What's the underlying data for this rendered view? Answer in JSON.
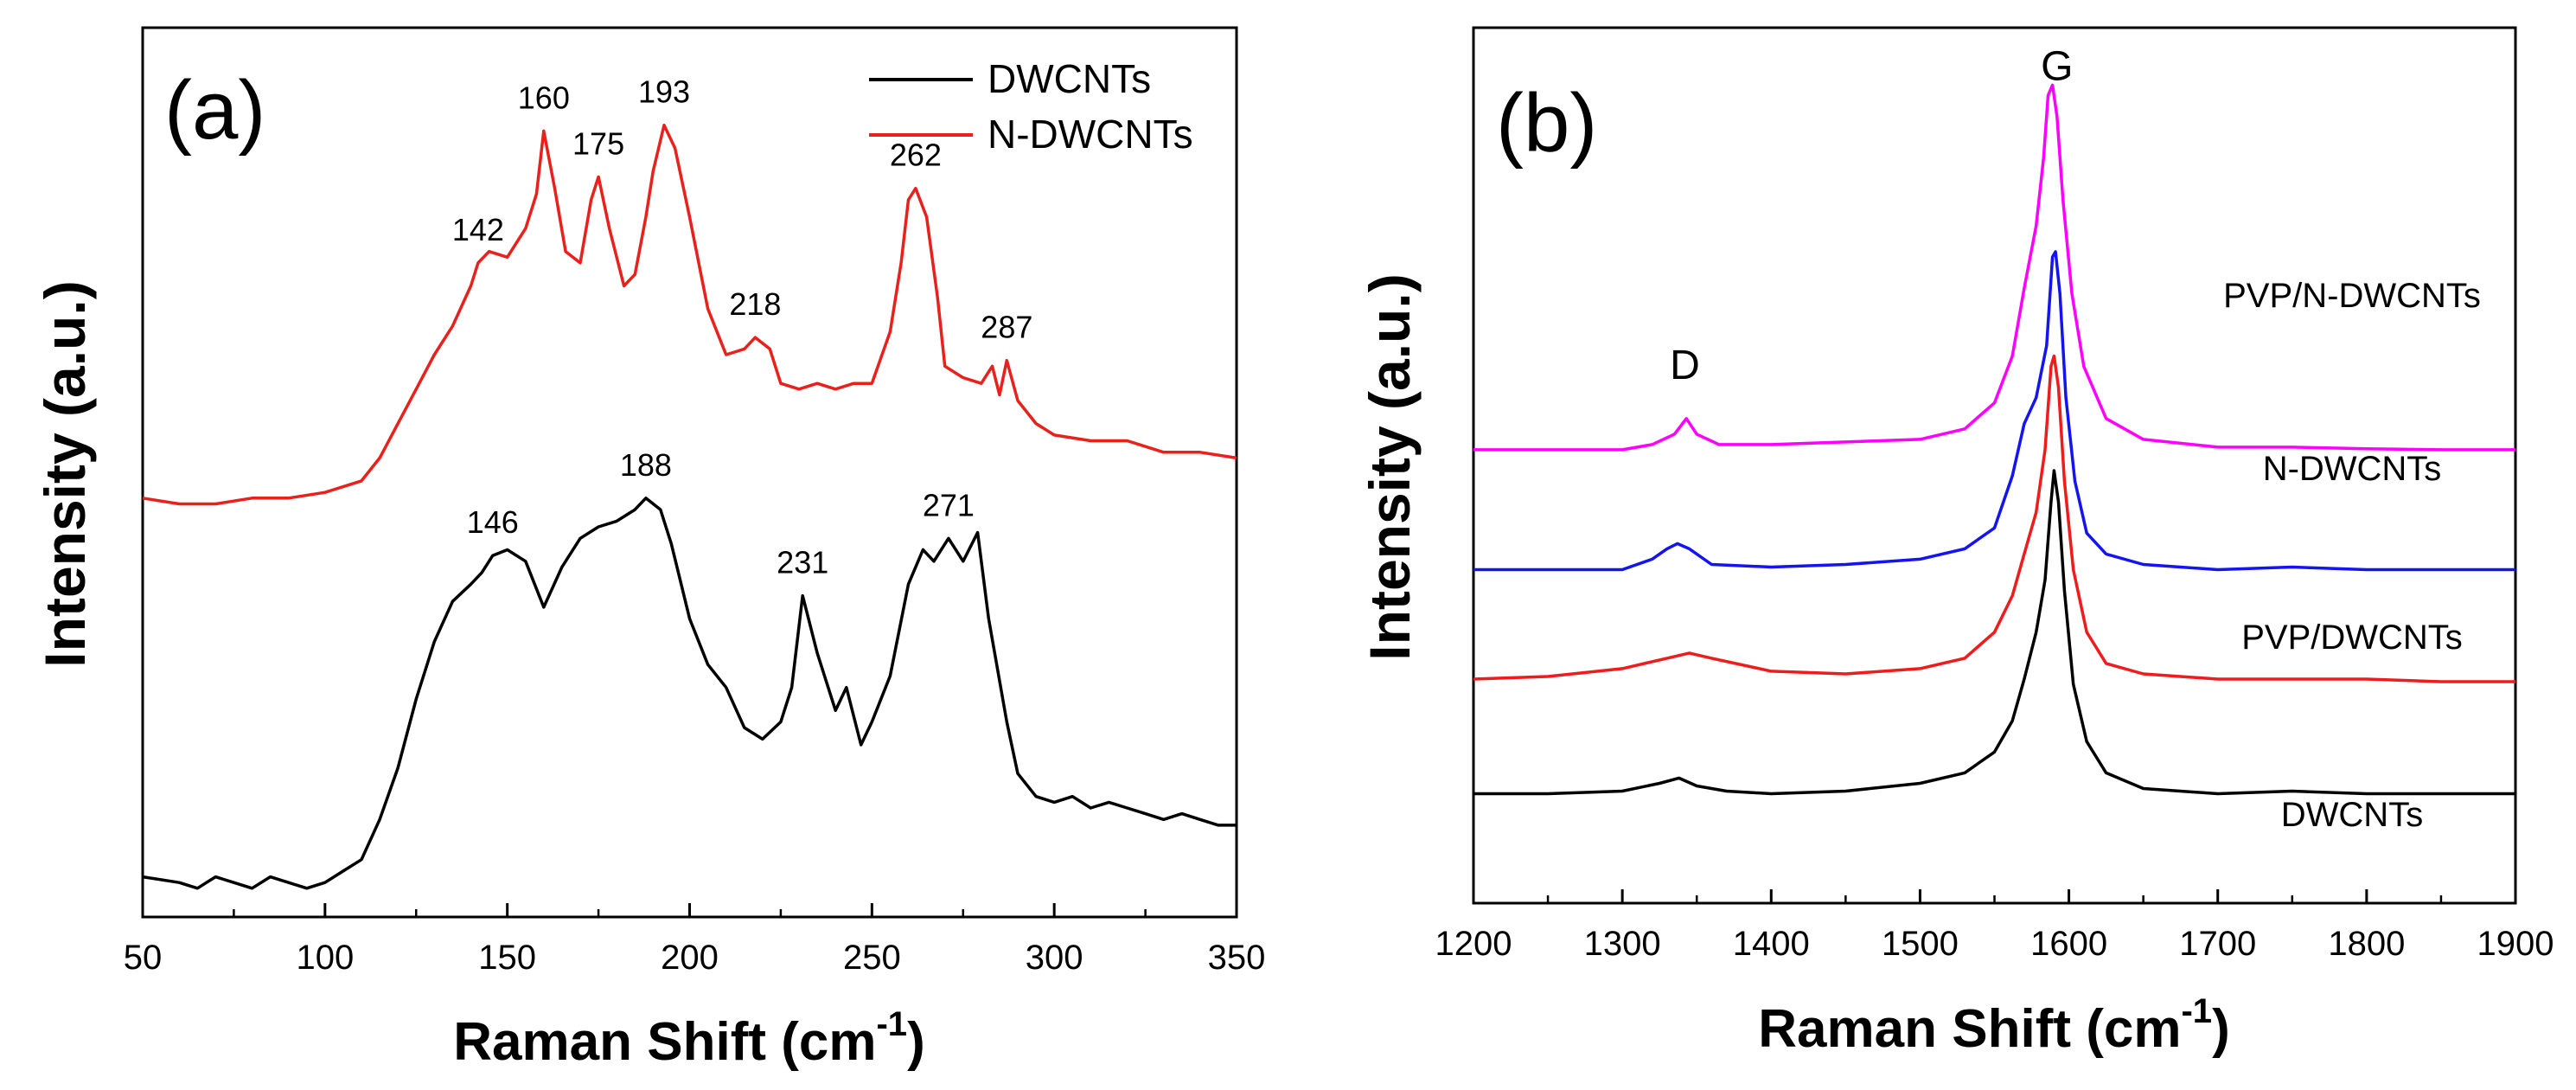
{
  "chart_data": [
    {
      "panel": "(a)",
      "type": "line",
      "xlabel": "Raman Shift (cm",
      "xlabel_sup": "-1",
      "xlabel_close": ")",
      "ylabel": "Intensity (a.u.)",
      "xlim": [
        50,
        350
      ],
      "xticks": [
        "50",
        "100",
        "150",
        "200",
        "250",
        "300",
        "350"
      ],
      "yticks_shown": false,
      "legend_position": "top-right",
      "series": [
        {
          "name": "DWCNTs",
          "color": "#000000",
          "x": [
            50,
            60,
            65,
            70,
            75,
            80,
            85,
            90,
            95,
            100,
            105,
            110,
            115,
            120,
            125,
            130,
            135,
            140,
            143,
            146,
            150,
            155,
            160,
            165,
            170,
            175,
            180,
            185,
            188,
            192,
            195,
            200,
            205,
            210,
            215,
            220,
            225,
            228,
            231,
            235,
            240,
            243,
            247,
            250,
            255,
            260,
            264,
            267,
            271,
            275,
            279,
            282,
            287,
            290,
            295,
            300,
            305,
            310,
            315,
            320,
            325,
            330,
            335,
            340,
            345,
            350
          ],
          "y": [
            0.07,
            0.06,
            0.05,
            0.07,
            0.06,
            0.05,
            0.07,
            0.06,
            0.05,
            0.06,
            0.08,
            0.1,
            0.17,
            0.26,
            0.38,
            0.48,
            0.55,
            0.58,
            0.6,
            0.63,
            0.64,
            0.62,
            0.54,
            0.61,
            0.66,
            0.68,
            0.69,
            0.71,
            0.73,
            0.71,
            0.65,
            0.52,
            0.44,
            0.4,
            0.33,
            0.31,
            0.34,
            0.4,
            0.56,
            0.46,
            0.36,
            0.4,
            0.3,
            0.34,
            0.42,
            0.58,
            0.64,
            0.62,
            0.66,
            0.62,
            0.67,
            0.52,
            0.34,
            0.25,
            0.21,
            0.2,
            0.21,
            0.19,
            0.2,
            0.19,
            0.18,
            0.17,
            0.18,
            0.17,
            0.16,
            0.16
          ]
        },
        {
          "name": "N-DWCNTs",
          "color": "#e8211c",
          "x": [
            50,
            60,
            70,
            80,
            90,
            100,
            105,
            110,
            115,
            120,
            125,
            130,
            135,
            140,
            142,
            145,
            150,
            155,
            158,
            160,
            163,
            166,
            170,
            173,
            175,
            178,
            182,
            185,
            188,
            190,
            193,
            196,
            200,
            205,
            210,
            215,
            218,
            222,
            225,
            230,
            235,
            240,
            245,
            250,
            255,
            258,
            260,
            262,
            265,
            268,
            270,
            275,
            280,
            283,
            285,
            287,
            290,
            295,
            300,
            310,
            320,
            330,
            340,
            350
          ],
          "y": [
            0.73,
            0.72,
            0.72,
            0.73,
            0.73,
            0.74,
            0.75,
            0.76,
            0.8,
            0.86,
            0.92,
            0.98,
            1.03,
            1.1,
            1.14,
            1.16,
            1.15,
            1.2,
            1.26,
            1.37,
            1.27,
            1.16,
            1.14,
            1.25,
            1.29,
            1.2,
            1.1,
            1.12,
            1.22,
            1.3,
            1.38,
            1.34,
            1.22,
            1.06,
            0.98,
            0.99,
            1.01,
            0.99,
            0.93,
            0.92,
            0.93,
            0.92,
            0.93,
            0.93,
            1.02,
            1.14,
            1.25,
            1.27,
            1.22,
            1.08,
            0.96,
            0.94,
            0.93,
            0.96,
            0.91,
            0.97,
            0.9,
            0.86,
            0.84,
            0.83,
            0.83,
            0.81,
            0.81,
            0.8
          ]
        }
      ],
      "annotations": [
        {
          "text": "142",
          "x": 142,
          "series": "N-DWCNTs"
        },
        {
          "text": "160",
          "x": 160,
          "series": "N-DWCNTs"
        },
        {
          "text": "175",
          "x": 175,
          "series": "N-DWCNTs"
        },
        {
          "text": "193",
          "x": 193,
          "series": "N-DWCNTs"
        },
        {
          "text": "218",
          "x": 218,
          "series": "N-DWCNTs"
        },
        {
          "text": "262",
          "x": 262,
          "series": "N-DWCNTs"
        },
        {
          "text": "287",
          "x": 287,
          "series": "N-DWCNTs"
        },
        {
          "text": "146",
          "x": 146,
          "series": "DWCNTs"
        },
        {
          "text": "188",
          "x": 188,
          "series": "DWCNTs"
        },
        {
          "text": "231",
          "x": 231,
          "series": "DWCNTs"
        },
        {
          "text": "271",
          "x": 271,
          "series": "DWCNTs"
        }
      ]
    },
    {
      "panel": "(b)",
      "type": "line",
      "xlabel": "Raman Shift (cm",
      "xlabel_sup": "-1",
      "xlabel_close": ")",
      "ylabel": "Intensity (a.u.)",
      "xlim": [
        1200,
        1900
      ],
      "xticks": [
        "1200",
        "1300",
        "1400",
        "1500",
        "1600",
        "1700",
        "1800",
        "1900"
      ],
      "yticks_shown": false,
      "series": [
        {
          "name": "PVP/N-DWCNTs",
          "color": "#ff00ff",
          "x": [
            1200,
            1250,
            1300,
            1320,
            1335,
            1343,
            1350,
            1365,
            1400,
            1450,
            1500,
            1530,
            1550,
            1562,
            1570,
            1578,
            1583,
            1586,
            1589,
            1592,
            1596,
            1602,
            1610,
            1625,
            1650,
            1700,
            1750,
            1800,
            1850,
            1900
          ],
          "y": [
            0.62,
            0.62,
            0.62,
            0.63,
            0.65,
            0.68,
            0.65,
            0.63,
            0.63,
            0.635,
            0.64,
            0.66,
            0.71,
            0.8,
            0.93,
            1.05,
            1.18,
            1.3,
            1.32,
            1.26,
            1.1,
            0.92,
            0.78,
            0.68,
            0.64,
            0.625,
            0.625,
            0.622,
            0.62,
            0.62
          ]
        },
        {
          "name": "N-DWCNTs",
          "color": "#1414f0",
          "x": [
            1200,
            1250,
            1300,
            1320,
            1330,
            1337,
            1345,
            1360,
            1400,
            1450,
            1500,
            1530,
            1550,
            1562,
            1570,
            1578,
            1585,
            1589,
            1591,
            1594,
            1598,
            1604,
            1612,
            1625,
            1650,
            1700,
            1750,
            1800,
            1850,
            1900
          ],
          "y": [
            0.39,
            0.39,
            0.39,
            0.41,
            0.43,
            0.44,
            0.43,
            0.4,
            0.395,
            0.4,
            0.41,
            0.43,
            0.47,
            0.57,
            0.67,
            0.72,
            0.82,
            0.99,
            1.0,
            0.92,
            0.72,
            0.56,
            0.46,
            0.42,
            0.4,
            0.39,
            0.395,
            0.39,
            0.39,
            0.39
          ]
        },
        {
          "name": "PVP/DWCNTs",
          "color": "#ee1c1c",
          "x": [
            1200,
            1250,
            1300,
            1330,
            1345,
            1360,
            1400,
            1450,
            1500,
            1530,
            1550,
            1562,
            1570,
            1578,
            1584,
            1588,
            1590,
            1593,
            1597,
            1603,
            1612,
            1625,
            1650,
            1700,
            1750,
            1800,
            1850,
            1900
          ],
          "y": [
            0.18,
            0.185,
            0.2,
            0.22,
            0.23,
            0.22,
            0.195,
            0.19,
            0.2,
            0.22,
            0.27,
            0.34,
            0.42,
            0.5,
            0.62,
            0.78,
            0.8,
            0.74,
            0.56,
            0.39,
            0.27,
            0.21,
            0.19,
            0.18,
            0.18,
            0.18,
            0.175,
            0.175
          ]
        },
        {
          "name": "DWCNTs",
          "color": "#000000",
          "x": [
            1200,
            1250,
            1300,
            1325,
            1338,
            1350,
            1370,
            1400,
            1450,
            1500,
            1530,
            1550,
            1562,
            1570,
            1578,
            1584,
            1588,
            1590,
            1593,
            1597,
            1603,
            1612,
            1625,
            1650,
            1700,
            1750,
            1800,
            1850,
            1900
          ],
          "y": [
            -0.04,
            -0.04,
            -0.035,
            -0.02,
            -0.01,
            -0.025,
            -0.035,
            -0.04,
            -0.035,
            -0.02,
            0.0,
            0.04,
            0.1,
            0.18,
            0.27,
            0.37,
            0.52,
            0.58,
            0.52,
            0.35,
            0.17,
            0.06,
            0.0,
            -0.03,
            -0.04,
            -0.035,
            -0.04,
            -0.04,
            -0.04
          ]
        }
      ],
      "annotations": [
        {
          "text": "D",
          "x": 1342
        },
        {
          "text": "G",
          "x": 1592
        }
      ],
      "series_labels": [
        {
          "text": "PVP/N-DWCNTs",
          "series": "PVP/N-DWCNTs"
        },
        {
          "text": "N-DWCNTs",
          "series": "N-DWCNTs"
        },
        {
          "text": "PVP/DWCNTs",
          "series": "PVP/DWCNTs"
        },
        {
          "text": "DWCNTs",
          "series": "DWCNTs"
        }
      ]
    }
  ]
}
